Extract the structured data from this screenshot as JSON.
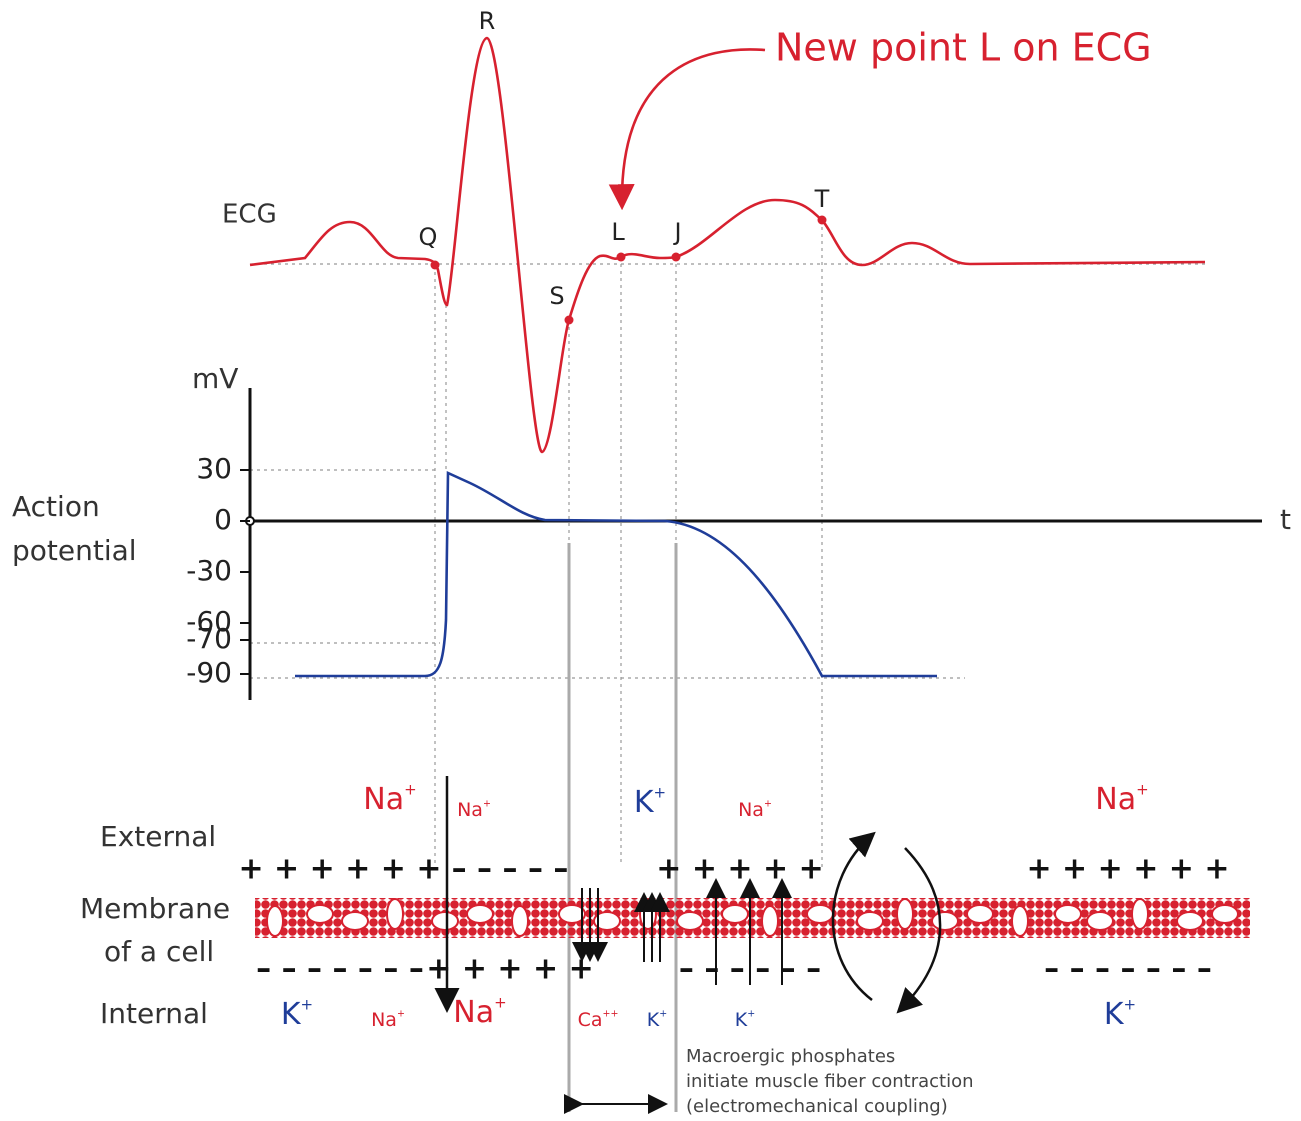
{
  "annotation": "New point L on ECG",
  "ecg": {
    "label": "ECG",
    "points": [
      "Q",
      "R",
      "S",
      "L",
      "J",
      "T"
    ]
  },
  "action_potential": {
    "label_lines": [
      "Action",
      "potential"
    ],
    "unit": "mV",
    "time_label": "t",
    "ticks": [
      30,
      0,
      -30,
      -60,
      -70,
      -90
    ]
  },
  "membrane": {
    "external": "External",
    "membrane_lines": [
      "Membrane",
      "of a cell"
    ],
    "internal": "Internal"
  },
  "ions": [
    {
      "symbol": "Na",
      "charge": "+"
    },
    {
      "symbol": "Na",
      "charge": "+"
    },
    {
      "symbol": "K",
      "charge": "+"
    },
    {
      "symbol": "Na",
      "charge": "+"
    },
    {
      "symbol": "Na",
      "charge": "+"
    },
    {
      "symbol": "K",
      "charge": "+"
    },
    {
      "symbol": "Na",
      "charge": "+"
    },
    {
      "symbol": "Na",
      "charge": "+"
    },
    {
      "symbol": "Ca",
      "charge": "++"
    },
    {
      "symbol": "K",
      "charge": "+"
    },
    {
      "symbol": "K",
      "charge": "+"
    },
    {
      "symbol": "K",
      "charge": "+"
    }
  ],
  "charges": [
    "+ + + + + +",
    "– – – – –",
    "+ + + + +",
    "+ + + + + +",
    "– – – – – – –",
    "+ + + + +",
    "– – – – – –",
    "– – – – – – –"
  ],
  "footnote": [
    "Macroergic phosphates",
    "initiate muscle fiber contraction",
    "(electromechanical coupling)"
  ]
}
